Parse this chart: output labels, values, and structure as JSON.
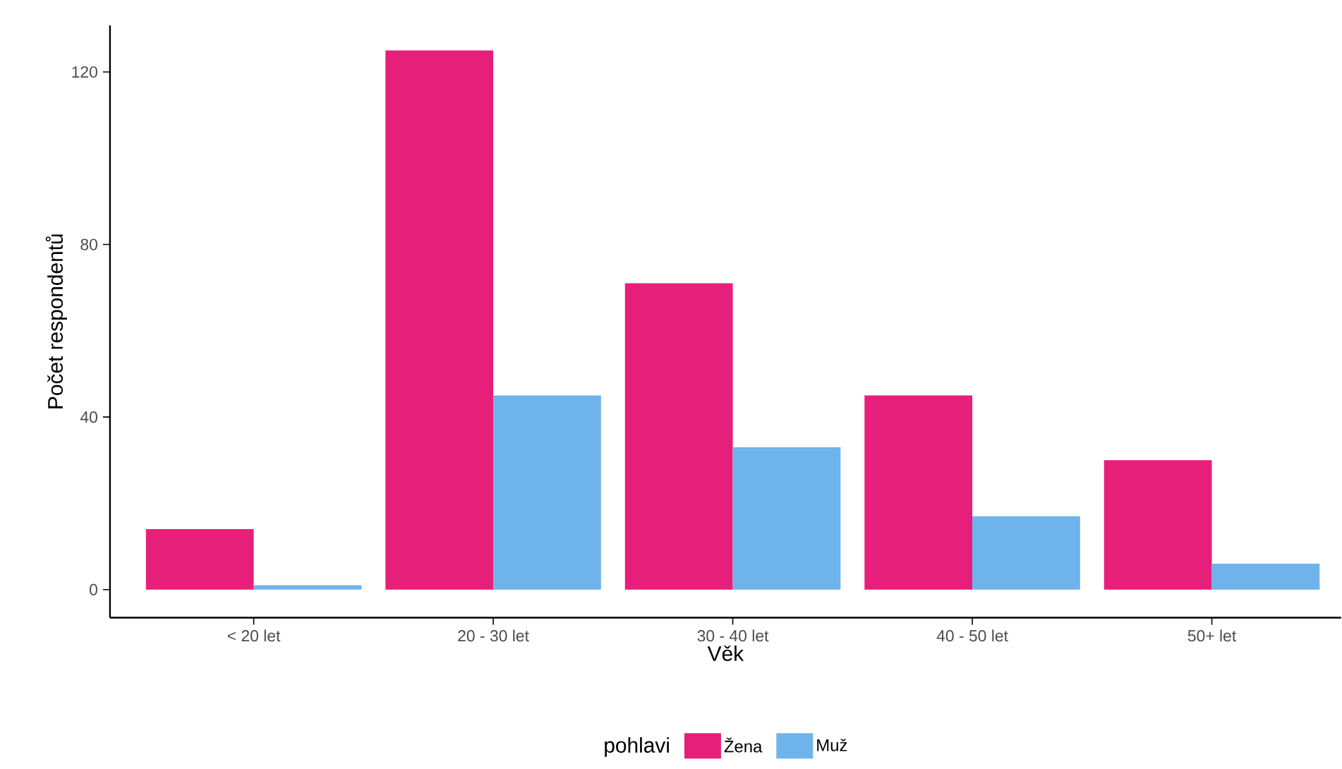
{
  "chart_data": {
    "type": "bar",
    "xlabel": "Věk",
    "ylabel": "Počet respondentů",
    "legend_title": "pohlavi",
    "legend": "bottom",
    "grid": false,
    "categories": [
      "< 20 let",
      "20 - 30 let",
      "30 - 40 let",
      "40 - 50 let",
      "50+ let"
    ],
    "series": [
      {
        "name": "Žena",
        "color": "#e61f7a",
        "values": [
          14,
          125,
          71,
          45,
          30
        ]
      },
      {
        "name": "Muž",
        "color": "#6eb3ec",
        "values": [
          1,
          45,
          33,
          17,
          6
        ]
      }
    ],
    "ylim": [
      -6.5,
      130.8
    ],
    "yticks": [
      0,
      40,
      80,
      120
    ]
  }
}
